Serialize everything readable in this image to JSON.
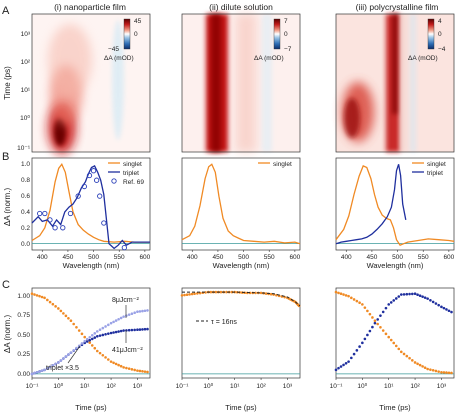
{
  "figure": {
    "row_labels": [
      "A",
      "B",
      "C"
    ],
    "column_titles": [
      "(i) nanoparticle film",
      "(ii) dilute solution",
      "(iii) polycrystalline film"
    ],
    "colors": {
      "singlet": "#f08a24",
      "triplet": "#1f2f9e",
      "triplet_light": "#9aa2e6",
      "ref69": "#2a3fb8",
      "zero_line": "#3a9a9a",
      "heat_positive": "#8b0000",
      "heat_negative": "#1f5fa8"
    }
  },
  "row_a": {
    "ylabel": "Time (ps)",
    "y_ticks": [
      "10³",
      "10²",
      "10¹",
      "10⁰",
      "10⁻¹"
    ],
    "colorbars": [
      {
        "max": "45",
        "zero": "0",
        "min": "−45",
        "label": "ΔA (mOD)"
      },
      {
        "max": "7",
        "zero": "0",
        "min": "−7",
        "label": "ΔA (mOD)"
      },
      {
        "max": "4",
        "zero": "0",
        "min": "−4",
        "label": "ΔA (mOD)"
      }
    ]
  },
  "row_b": {
    "ylabel": "ΔA (norm.)",
    "y_ticks": [
      "1.0",
      "0.8",
      "0.6",
      "0.4",
      "0.2",
      "0.0"
    ],
    "x_ticks": [
      "400",
      "450",
      "500",
      "550",
      "600"
    ],
    "xlabel": "Wavelength (nm)",
    "legend_i": [
      "singlet",
      "triplet",
      "Ref. 69"
    ],
    "legend_ii": [
      "singlet"
    ],
    "legend_iii": [
      "singlet",
      "triplet"
    ]
  },
  "row_c": {
    "ylabel": "ΔA (norm.)",
    "y_ticks": [
      "1.00",
      "0.75",
      "0.50",
      "0.25",
      "0.00"
    ],
    "x_ticks": [
      "10⁻¹",
      "10⁰",
      "10¹",
      "10²",
      "10³"
    ],
    "xlabel": "Time (ps)",
    "annot_8": "8μJcm⁻²",
    "annot_41": "41μJcm⁻²",
    "annot_triplet": "triplet ×3.5",
    "annot_tau": "τ = 16ns"
  },
  "chart_data": [
    {
      "type": "heatmap",
      "panel": "A(i)",
      "title": "(i) nanoparticle film",
      "ylabel": "Time (ps)",
      "yscale": "log",
      "ylim": [
        0.1,
        3000
      ],
      "xlim": [
        380,
        610
      ],
      "peak_wavelength": 440,
      "colorbar": {
        "min": -45,
        "max": 45,
        "label": "ΔA (mOD)"
      }
    },
    {
      "type": "heatmap",
      "panel": "A(ii)",
      "title": "(ii) dilute solution",
      "yscale": "log",
      "ylim": [
        0.1,
        3000
      ],
      "xlim": [
        380,
        610
      ],
      "peak_wavelength": 440,
      "colorbar": {
        "min": -7,
        "max": 7,
        "label": "ΔA (mOD)"
      }
    },
    {
      "type": "heatmap",
      "panel": "A(iii)",
      "title": "(iii) polycrystalline film",
      "yscale": "log",
      "ylim": [
        0.1,
        3000
      ],
      "xlim": [
        380,
        610
      ],
      "peak_wavelengths": [
        440,
        500
      ],
      "colorbar": {
        "min": -4,
        "max": 4,
        "label": "ΔA (mOD)"
      }
    },
    {
      "type": "line",
      "panel": "B(i)",
      "xlabel": "Wavelength (nm)",
      "ylabel": "ΔA (norm.)",
      "xlim": [
        380,
        610
      ],
      "ylim": [
        -0.08,
        1.08
      ],
      "series": [
        {
          "name": "singlet",
          "x": [
            380,
            395,
            405,
            415,
            425,
            432,
            438,
            445,
            452,
            460,
            470,
            480,
            490,
            500,
            510,
            520,
            540,
            560,
            580,
            610
          ],
          "y": [
            0.04,
            0.1,
            0.2,
            0.42,
            0.78,
            0.95,
            1.0,
            0.9,
            0.66,
            0.4,
            0.24,
            0.17,
            0.12,
            0.08,
            0.05,
            0.03,
            0.02,
            0.03,
            0.02,
            0.02
          ]
        },
        {
          "name": "triplet",
          "x": [
            380,
            392,
            400,
            410,
            420,
            428,
            436,
            444,
            452,
            460,
            468,
            476,
            484,
            490,
            496,
            502,
            508,
            514,
            520,
            530,
            540,
            548,
            556,
            564,
            575,
            590,
            610
          ],
          "y": [
            0.26,
            0.34,
            0.28,
            0.3,
            0.22,
            0.3,
            0.24,
            0.4,
            0.46,
            0.5,
            0.58,
            0.7,
            0.78,
            0.88,
            0.96,
            0.98,
            0.9,
            0.8,
            0.62,
            0.0,
            -0.06,
            -0.02,
            0.04,
            -0.02,
            0.02,
            0.02,
            0.02
          ]
        },
        {
          "name": "Ref. 69",
          "x": [
            395,
            405,
            415,
            425,
            440,
            455,
            470,
            482,
            492,
            500,
            506,
            512,
            520,
            560
          ],
          "y": [
            0.38,
            0.38,
            0.3,
            0.2,
            0.2,
            0.38,
            0.6,
            0.72,
            0.86,
            0.92,
            0.8,
            0.6,
            0.26,
            -0.05
          ]
        }
      ]
    },
    {
      "type": "line",
      "panel": "B(ii)",
      "xlabel": "Wavelength (nm)",
      "xlim": [
        380,
        610
      ],
      "ylim": [
        -0.08,
        1.08
      ],
      "series": [
        {
          "name": "singlet",
          "x": [
            380,
            395,
            405,
            415,
            425,
            432,
            438,
            445,
            452,
            460,
            470,
            480,
            490,
            500,
            520,
            540,
            560,
            580,
            600,
            610
          ],
          "y": [
            0.05,
            0.1,
            0.22,
            0.48,
            0.82,
            0.97,
            1.0,
            0.9,
            0.6,
            0.32,
            0.16,
            0.1,
            0.07,
            0.04,
            0.03,
            0.02,
            0.03,
            0.01,
            0.02,
            0.0
          ]
        }
      ]
    },
    {
      "type": "line",
      "panel": "B(iii)",
      "xlabel": "Wavelength (nm)",
      "xlim": [
        380,
        610
      ],
      "ylim": [
        -0.08,
        1.08
      ],
      "series": [
        {
          "name": "singlet",
          "x": [
            380,
            395,
            405,
            415,
            425,
            433,
            440,
            448,
            455,
            462,
            470,
            478,
            486,
            492,
            498,
            505,
            512,
            520,
            540,
            560,
            580,
            600,
            610
          ],
          "y": [
            0.05,
            0.18,
            0.35,
            0.62,
            0.85,
            0.98,
            0.96,
            0.82,
            0.62,
            0.46,
            0.36,
            0.32,
            0.3,
            0.2,
            0.05,
            -0.02,
            0.0,
            0.02,
            0.04,
            0.06,
            0.05,
            0.04,
            0.03
          ]
        },
        {
          "name": "triplet",
          "x": [
            380,
            390,
            400,
            410,
            420,
            430,
            440,
            450,
            460,
            470,
            480,
            488,
            494,
            498,
            502,
            506,
            510,
            516
          ],
          "y": [
            0.0,
            0.02,
            0.03,
            0.04,
            0.05,
            0.06,
            0.08,
            0.12,
            0.18,
            0.25,
            0.34,
            0.46,
            0.68,
            0.92,
            1.0,
            0.86,
            0.5,
            0.3
          ]
        }
      ]
    },
    {
      "type": "scatter",
      "panel": "C(i)",
      "xlabel": "Time (ps)",
      "ylabel": "ΔA (norm.)",
      "xscale": "log",
      "xlim": [
        0.1,
        3000
      ],
      "ylim": [
        -0.05,
        1.05
      ],
      "series": [
        {
          "name": "singlet",
          "x": [
            0.1,
            0.3,
            1,
            3,
            10,
            30,
            100,
            300,
            1000,
            3000
          ],
          "y": [
            0.98,
            0.93,
            0.8,
            0.65,
            0.45,
            0.28,
            0.15,
            0.08,
            0.04,
            0.02
          ]
        },
        {
          "name": "triplet",
          "x": [
            0.1,
            0.3,
            1,
            3,
            10,
            30,
            100,
            300,
            1000,
            3000
          ],
          "y": [
            0.0,
            0.05,
            0.14,
            0.26,
            0.38,
            0.46,
            0.5,
            0.53,
            0.54,
            0.55
          ]
        },
        {
          "name": "triplet",
          "x": [
            0.1,
            0.3,
            1,
            3,
            10,
            30,
            100,
            300,
            1000,
            3000
          ],
          "y": [
            0.0,
            0.05,
            0.14,
            0.26,
            0.4,
            0.52,
            0.62,
            0.7,
            0.76,
            0.78
          ]
        }
      ]
    },
    {
      "type": "scatter",
      "panel": "C(ii)",
      "xlabel": "Time (ps)",
      "xscale": "log",
      "xlim": [
        0.1,
        3000
      ],
      "ylim": [
        -0.05,
        1.05
      ],
      "series": [
        {
          "name": "singlet",
          "x": [
            0.1,
            0.3,
            1,
            3,
            10,
            30,
            100,
            300,
            1000,
            2000,
            3000
          ],
          "y": [
            0.96,
            0.98,
            1.0,
            1.0,
            1.0,
            0.99,
            0.99,
            0.97,
            0.93,
            0.88,
            0.82
          ]
        },
        {
          "name": "τ = 16ns",
          "x": [
            0.1,
            1,
            10,
            100,
            300,
            1000,
            2000,
            3000
          ],
          "y": [
            1.0,
            1.0,
            1.0,
            0.99,
            0.98,
            0.94,
            0.88,
            0.83
          ]
        }
      ]
    },
    {
      "type": "scatter",
      "panel": "C(iii)",
      "xlabel": "Time (ps)",
      "xscale": "log",
      "xlim": [
        0.1,
        3000
      ],
      "ylim": [
        -0.05,
        1.05
      ],
      "series": [
        {
          "name": "singlet",
          "x": [
            0.1,
            0.3,
            1,
            3,
            10,
            30,
            100,
            300,
            1000,
            3000
          ],
          "y": [
            1.0,
            0.95,
            0.85,
            0.65,
            0.45,
            0.27,
            0.14,
            0.06,
            0.02,
            0.01
          ]
        },
        {
          "name": "triplet",
          "x": [
            0.1,
            0.3,
            1,
            3,
            10,
            30,
            100,
            300,
            1000,
            3000
          ],
          "y": [
            0.05,
            0.15,
            0.38,
            0.62,
            0.85,
            0.97,
            0.98,
            0.92,
            0.82,
            0.74
          ]
        }
      ]
    }
  ]
}
